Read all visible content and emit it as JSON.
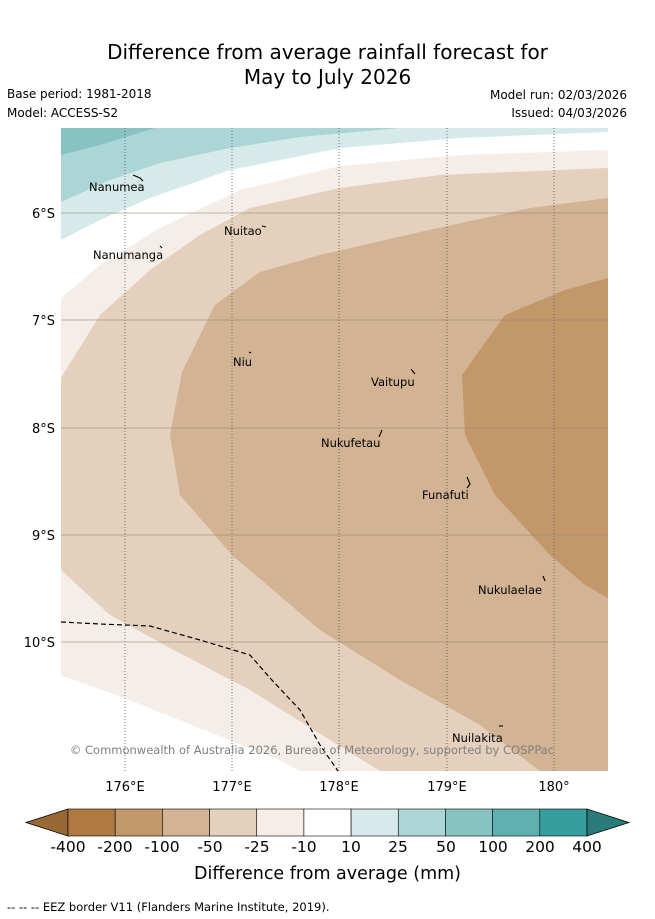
{
  "title_line1": "Difference from average rainfall forecast for",
  "title_line2": "May to July 2026",
  "base_period": "Base period: 1981-2018",
  "model": "Model: ACCESS-S2",
  "model_run": "Model run: 02/03/2026",
  "issued": "Issued: 04/03/2026",
  "latitude_labels": [
    "6°S",
    "7°S",
    "8°S",
    "9°S",
    "10°S"
  ],
  "longitude_labels": [
    "176°E",
    "177°E",
    "178°E",
    "179°E",
    "180°"
  ],
  "islands": {
    "nanumea": "Nanumea",
    "nuitao": "Nuitao",
    "nanumanga": "Nanumanga",
    "niu": "Niu",
    "vaitupu": "Vaitupu",
    "nukufetau": "Nukufetau",
    "funafuti": "Funafuti",
    "nukulaelae": "Nukulaelae",
    "nuilakita": "Nuilakita"
  },
  "copyright": "© Commonwealth of Australia 2026, Bureau of Meteorology, supported by COSPPac",
  "colorbar": {
    "ticks": [
      "-400",
      "-200",
      "-100",
      "-50",
      "-25",
      "-10",
      "10",
      "25",
      "50",
      "100",
      "200",
      "400"
    ],
    "colors": [
      "#b07941",
      "#c29769",
      "#d2b393",
      "#e4d0bd",
      "#f5eee8",
      "#ffffff",
      "#d6eae9",
      "#acd6d5",
      "#86c3c2",
      "#5fb0b0",
      "#369e9d"
    ],
    "under_color": "#9a6834",
    "over_color": "#2a7c7b",
    "label": "Difference from average (mm)"
  },
  "eez_note": "-- -- -- EEZ border V11 (Flanders Marine Institute, 2019)."
}
